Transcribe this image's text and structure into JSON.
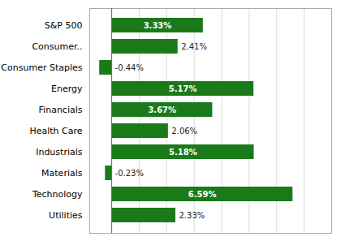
{
  "chart_data": {
    "type": "bar",
    "orientation": "horizontal",
    "categories": [
      "S&P 500",
      "Consumer..",
      "Consumer Staples",
      "Energy",
      "Financials",
      "Health Care",
      "Industrials",
      "Materials",
      "Technology",
      "Utilities"
    ],
    "values": [
      3.33,
      2.41,
      -0.44,
      5.17,
      3.67,
      2.06,
      5.18,
      -0.23,
      6.59,
      2.33
    ],
    "value_labels": [
      "3.33%",
      "2.41%",
      "-0.44%",
      "5.17%",
      "3.67%",
      "2.06%",
      "5.18%",
      "-0.23%",
      "6.59%",
      "2.33%"
    ],
    "color": "#1a7a1a",
    "xlim": [
      -0.8,
      8.0
    ],
    "xticks": [
      0,
      1,
      2,
      3,
      4,
      5,
      6,
      7,
      8
    ],
    "grid": true,
    "data_labels": true,
    "tick_labels": "y"
  }
}
